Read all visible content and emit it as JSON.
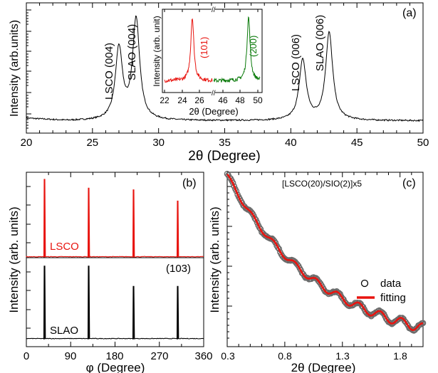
{
  "chart_data": [
    {
      "panel": "(a)",
      "type": "line",
      "xlabel": "2θ (Degree)",
      "ylabel": "Intensity (arb.units)",
      "xlim": [
        20,
        50
      ],
      "x_ticks": [
        "20",
        "25",
        "30",
        "35",
        "40",
        "45",
        "50"
      ],
      "y_scale": "log",
      "color": "#000000",
      "peaks": [
        {
          "x": 27.0,
          "height": 0.58,
          "label": "LSCO (004)"
        },
        {
          "x": 28.3,
          "height": 0.82,
          "label": "SLAO (004)"
        },
        {
          "x": 40.9,
          "height": 0.49,
          "label": "LSCO (006)"
        },
        {
          "x": 42.9,
          "height": 0.71,
          "label": "SLAO (006)"
        }
      ],
      "inset": {
        "xlabel": "2θ (Degree)",
        "ylabel": "Intensity (arb. unit)",
        "x_ticks": [
          "22",
          "24",
          "26",
          "46",
          "48",
          "50"
        ],
        "axis_break": "//",
        "series": [
          {
            "label": "(101)",
            "color": "#e8140f",
            "x_range": [
              22,
              27
            ],
            "peak_x": 24.5
          },
          {
            "label": "(200)",
            "color": "#0a7a0a",
            "x_range": [
              45,
              51
            ],
            "peak_x": 48.3
          }
        ]
      }
    },
    {
      "panel": "(b)",
      "type": "line",
      "xlabel": "φ (Degree)",
      "ylabel": "Intensity (arb. units)",
      "xlim": [
        0,
        360
      ],
      "x_ticks": [
        "0",
        "90",
        "180",
        "270",
        "360"
      ],
      "annotation": "(103)",
      "series": [
        {
          "name": "LSCO",
          "color": "#e8140f",
          "peaks_x": [
            37,
            127,
            217,
            307
          ],
          "heights": [
            0.97,
            0.86,
            0.84,
            0.7
          ]
        },
        {
          "name": "SLAO",
          "color": "#000000",
          "peaks_x": [
            37,
            127,
            217,
            307
          ],
          "heights": [
            0.97,
            0.97,
            0.7,
            0.7
          ]
        }
      ]
    },
    {
      "panel": "(c)",
      "type": "scatter",
      "title": "[LSCO(20)/SIO(2)]x5",
      "xlabel": "2θ (Degree)",
      "ylabel": "Intensity (arb. units)",
      "xlim": [
        0.3,
        2.0
      ],
      "x_ticks": [
        "0.3",
        "0.8",
        "1.3",
        "1.8"
      ],
      "y_scale": "log",
      "oscillation_period": 0.185,
      "legend_position": "right",
      "series": [
        {
          "name": "data",
          "marker": "open-circle",
          "color": "#555555"
        },
        {
          "name": "fitting",
          "color": "#e8140f"
        }
      ]
    }
  ]
}
